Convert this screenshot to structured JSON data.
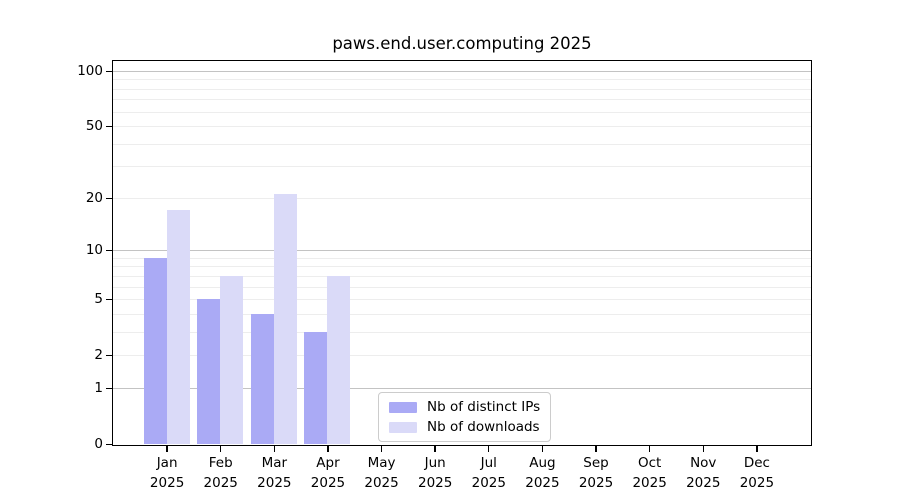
{
  "title": "paws.end.user.computing 2025",
  "chart_data": {
    "type": "bar",
    "title": "paws.end.user.computing 2025",
    "scale": "log10(1+x)",
    "ylim": [
      0,
      100
    ],
    "grid": "horizontal",
    "legend_position": "bottom-center-inside",
    "categories": [
      {
        "month": "Jan",
        "year": "2025"
      },
      {
        "month": "Feb",
        "year": "2025"
      },
      {
        "month": "Mar",
        "year": "2025"
      },
      {
        "month": "Apr",
        "year": "2025"
      },
      {
        "month": "May",
        "year": "2025"
      },
      {
        "month": "Jun",
        "year": "2025"
      },
      {
        "month": "Jul",
        "year": "2025"
      },
      {
        "month": "Aug",
        "year": "2025"
      },
      {
        "month": "Sep",
        "year": "2025"
      },
      {
        "month": "Oct",
        "year": "2025"
      },
      {
        "month": "Nov",
        "year": "2025"
      },
      {
        "month": "Dec",
        "year": "2025"
      }
    ],
    "series": [
      {
        "name": "Nb of distinct IPs",
        "color": "#aaaaf5",
        "values": [
          9,
          5,
          4,
          3,
          0,
          0,
          0,
          0,
          0,
          0,
          0,
          0
        ]
      },
      {
        "name": "Nb of downloads",
        "color": "#dadaf8",
        "values": [
          17,
          7,
          21,
          7,
          0,
          0,
          0,
          0,
          0,
          0,
          0,
          0
        ]
      }
    ],
    "y_ticks": [
      0,
      1,
      2,
      5,
      10,
      20,
      50,
      100
    ],
    "grid_major": [
      1,
      10,
      100
    ],
    "grid_minor": [
      2,
      3,
      4,
      5,
      6,
      7,
      8,
      9,
      20,
      30,
      40,
      50,
      60,
      70,
      80,
      90
    ]
  }
}
